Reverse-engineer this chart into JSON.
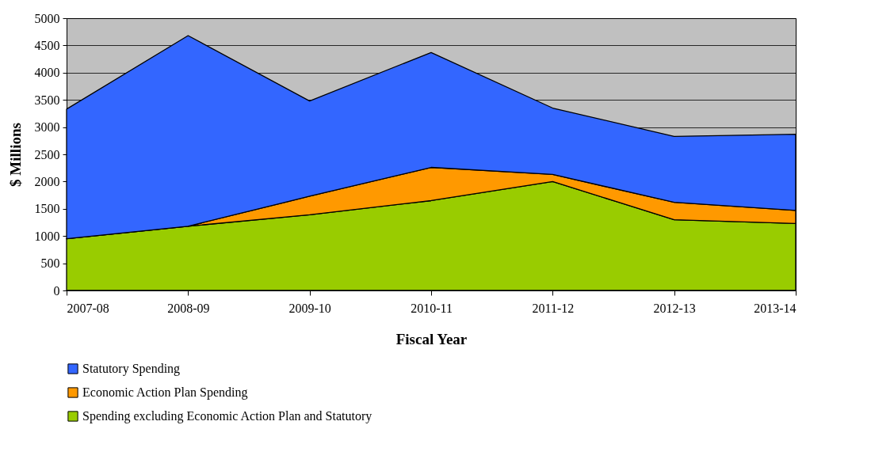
{
  "chart_data": {
    "type": "area",
    "stacked": true,
    "xlabel": "Fiscal Year",
    "ylabel": "$ Millions",
    "categories": [
      "2007-08",
      "2008-09",
      "2009-10",
      "2010-11",
      "2011-12",
      "2012-13",
      "2013-14"
    ],
    "series": [
      {
        "name": "Spending excluding Economic Action Plan and Statutory",
        "color": "#99cc00",
        "values": [
          950,
          1180,
          1390,
          1650,
          2000,
          1300,
          1230
        ]
      },
      {
        "name": "Economic Action Plan Spending",
        "color": "#ff9900",
        "values": [
          0,
          0,
          340,
          610,
          130,
          320,
          240
        ]
      },
      {
        "name": "Statutory Spending",
        "color": "#3366ff",
        "values": [
          2380,
          3500,
          1750,
          2110,
          1220,
          1210,
          1400
        ]
      }
    ],
    "ylim": [
      0,
      5000
    ],
    "yticks": [
      0,
      500,
      1000,
      1500,
      2000,
      2500,
      3000,
      3500,
      4000,
      4500,
      5000
    ],
    "grid": "y",
    "legend": "bottom"
  }
}
